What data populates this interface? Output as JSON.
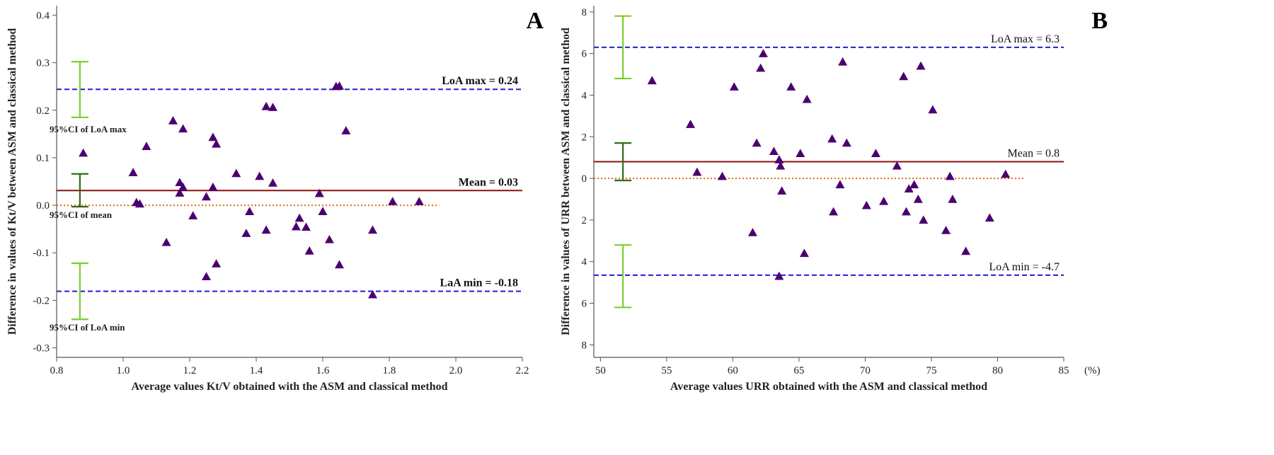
{
  "chart_data": [
    {
      "type": "scatter",
      "panel_label": "A",
      "xlabel": "Average values Kt/V obtained with the ASM and classical method",
      "ylabel": "Difference in values of Kt/V between ASM and classical method",
      "xlim": [
        0.8,
        2.2
      ],
      "ylim": [
        -0.32,
        0.42
      ],
      "xticks": [
        "0.8",
        "1.0",
        "1.2",
        "1.4",
        "1.6",
        "1.8",
        "2.0",
        "2.2"
      ],
      "yticks": [
        "0.4",
        "0.3",
        "0.2",
        "0.1",
        "0.0",
        "-0.1",
        "-0.2",
        "-0.3"
      ],
      "grid": false,
      "marker_color": "#4b0070",
      "reference_lines": [
        {
          "label": "LoA max = 0.24",
          "y": 0.244,
          "style": "dashed",
          "color": "#1f1fd6",
          "x_start": 0.8,
          "x_end": 2.2,
          "bold": true
        },
        {
          "label": "Mean = 0.03",
          "y": 0.031,
          "style": "solid",
          "color": "#8b1010",
          "x_start": 0.8,
          "x_end": 2.2,
          "bold": true
        },
        {
          "label": "",
          "y": 0.0,
          "style": "dotted",
          "color": "#e06a10",
          "x_start": 0.8,
          "x_end": 1.95,
          "bold": false
        },
        {
          "label": "LaA min = -0.18",
          "y": -0.181,
          "style": "dashed",
          "color": "#1f1fd6",
          "x_start": 0.8,
          "x_end": 2.2,
          "bold": true
        }
      ],
      "confidence_intervals": [
        {
          "label": "95%CI of  LoA max",
          "x": 0.87,
          "low": 0.185,
          "high": 0.302,
          "color": "#7ccc2c"
        },
        {
          "label": "95%CI of mean",
          "x": 0.87,
          "low": -0.003,
          "high": 0.066,
          "color": "#2f6b1a"
        },
        {
          "label": "95%CI of LoA min",
          "x": 0.87,
          "low": -0.24,
          "high": -0.122,
          "color": "#7ccc2c"
        }
      ],
      "points": [
        {
          "x": 0.88,
          "y": 0.11
        },
        {
          "x": 1.03,
          "y": 0.069
        },
        {
          "x": 1.04,
          "y": 0.006
        },
        {
          "x": 1.05,
          "y": 0.003
        },
        {
          "x": 1.07,
          "y": 0.124
        },
        {
          "x": 1.13,
          "y": -0.078
        },
        {
          "x": 1.15,
          "y": 0.178
        },
        {
          "x": 1.17,
          "y": 0.048
        },
        {
          "x": 1.17,
          "y": 0.026
        },
        {
          "x": 1.18,
          "y": 0.161
        },
        {
          "x": 1.18,
          "y": 0.038
        },
        {
          "x": 1.21,
          "y": -0.022
        },
        {
          "x": 1.25,
          "y": 0.018
        },
        {
          "x": 1.25,
          "y": -0.15
        },
        {
          "x": 1.27,
          "y": 0.143
        },
        {
          "x": 1.27,
          "y": 0.038
        },
        {
          "x": 1.28,
          "y": 0.129
        },
        {
          "x": 1.28,
          "y": -0.123
        },
        {
          "x": 1.34,
          "y": 0.067
        },
        {
          "x": 1.37,
          "y": -0.059
        },
        {
          "x": 1.38,
          "y": -0.013
        },
        {
          "x": 1.41,
          "y": 0.061
        },
        {
          "x": 1.43,
          "y": 0.208
        },
        {
          "x": 1.43,
          "y": -0.052
        },
        {
          "x": 1.45,
          "y": 0.206
        },
        {
          "x": 1.45,
          "y": 0.047
        },
        {
          "x": 1.52,
          "y": -0.045
        },
        {
          "x": 1.53,
          "y": -0.027
        },
        {
          "x": 1.55,
          "y": -0.046
        },
        {
          "x": 1.56,
          "y": -0.096
        },
        {
          "x": 1.59,
          "y": 0.025
        },
        {
          "x": 1.6,
          "y": -0.013
        },
        {
          "x": 1.62,
          "y": -0.072
        },
        {
          "x": 1.64,
          "y": 0.25
        },
        {
          "x": 1.65,
          "y": 0.251
        },
        {
          "x": 1.65,
          "y": -0.125
        },
        {
          "x": 1.67,
          "y": 0.157
        },
        {
          "x": 1.75,
          "y": -0.052
        },
        {
          "x": 1.75,
          "y": -0.188
        },
        {
          "x": 1.81,
          "y": 0.008
        },
        {
          "x": 1.89,
          "y": 0.008
        }
      ]
    },
    {
      "type": "scatter",
      "panel_label": "B",
      "xlabel": "Average values URR obtained with the ASM and classical method",
      "ylabel": "Difference in values of URR between ASM and classical method",
      "x_unit": "(%)",
      "xlim": [
        49.5,
        85
      ],
      "ylim": [
        -8.6,
        8.3
      ],
      "xticks": [
        "50",
        "55",
        "60",
        "65",
        "70",
        "75",
        "80",
        "85"
      ],
      "yticks": [
        "8",
        "6",
        "4",
        "2",
        "0",
        "2",
        "4",
        "6",
        "8"
      ],
      "grid": false,
      "marker_color": "#4b0070",
      "reference_lines": [
        {
          "label": "LoA max = 6.3",
          "y": 6.3,
          "style": "dashed",
          "color": "#1f1fd6",
          "x_start": 49.5,
          "x_end": 85,
          "bold": false
        },
        {
          "label": "Mean = 0.8",
          "y": 0.8,
          "style": "solid",
          "color": "#8b1010",
          "x_start": 49.5,
          "x_end": 85,
          "bold": false
        },
        {
          "label": "",
          "y": 0.0,
          "style": "dotted",
          "color": "#e06a10",
          "x_start": 49.5,
          "x_end": 82,
          "bold": false
        },
        {
          "label": "LoA min = -4.7",
          "y": -4.65,
          "style": "dashed",
          "color": "#1f1fd6",
          "x_start": 49.5,
          "x_end": 85,
          "bold": false
        }
      ],
      "confidence_intervals": [
        {
          "label": "",
          "x": 51.7,
          "low": 4.8,
          "high": 7.8,
          "color": "#7ccc2c"
        },
        {
          "label": "",
          "x": 51.7,
          "low": -0.1,
          "high": 1.7,
          "color": "#2f6b1a"
        },
        {
          "label": "",
          "x": 51.7,
          "low": -6.2,
          "high": -3.2,
          "color": "#7ccc2c"
        }
      ],
      "points": [
        {
          "x": 53.9,
          "y": 4.7
        },
        {
          "x": 56.8,
          "y": 2.6
        },
        {
          "x": 57.3,
          "y": 0.3
        },
        {
          "x": 59.2,
          "y": 0.1
        },
        {
          "x": 60.1,
          "y": 4.4
        },
        {
          "x": 61.5,
          "y": -2.6
        },
        {
          "x": 61.8,
          "y": 1.7
        },
        {
          "x": 62.1,
          "y": 5.3
        },
        {
          "x": 62.3,
          "y": 6.0
        },
        {
          "x": 63.1,
          "y": 1.3
        },
        {
          "x": 63.5,
          "y": 0.9
        },
        {
          "x": 63.6,
          "y": 0.6
        },
        {
          "x": 63.7,
          "y": -0.6
        },
        {
          "x": 63.5,
          "y": -4.7
        },
        {
          "x": 64.4,
          "y": 4.4
        },
        {
          "x": 65.1,
          "y": 1.2
        },
        {
          "x": 65.4,
          "y": -3.6
        },
        {
          "x": 65.6,
          "y": 3.8
        },
        {
          "x": 67.5,
          "y": 1.9
        },
        {
          "x": 67.6,
          "y": -1.6
        },
        {
          "x": 68.1,
          "y": -0.3
        },
        {
          "x": 68.3,
          "y": 5.6
        },
        {
          "x": 68.6,
          "y": 1.7
        },
        {
          "x": 70.1,
          "y": -1.3
        },
        {
          "x": 70.8,
          "y": 1.2
        },
        {
          "x": 71.4,
          "y": -1.1
        },
        {
          "x": 72.4,
          "y": 0.6
        },
        {
          "x": 72.9,
          "y": 4.9
        },
        {
          "x": 73.1,
          "y": -1.6
        },
        {
          "x": 73.3,
          "y": -0.5
        },
        {
          "x": 73.7,
          "y": -0.3
        },
        {
          "x": 74.0,
          "y": -1.0
        },
        {
          "x": 74.2,
          "y": 5.4
        },
        {
          "x": 74.4,
          "y": -2.0
        },
        {
          "x": 75.1,
          "y": 3.3
        },
        {
          "x": 76.1,
          "y": -2.5
        },
        {
          "x": 76.4,
          "y": 0.1
        },
        {
          "x": 76.6,
          "y": -1.0
        },
        {
          "x": 77.6,
          "y": -3.5
        },
        {
          "x": 79.4,
          "y": -1.9
        },
        {
          "x": 80.6,
          "y": 0.2
        }
      ]
    }
  ]
}
